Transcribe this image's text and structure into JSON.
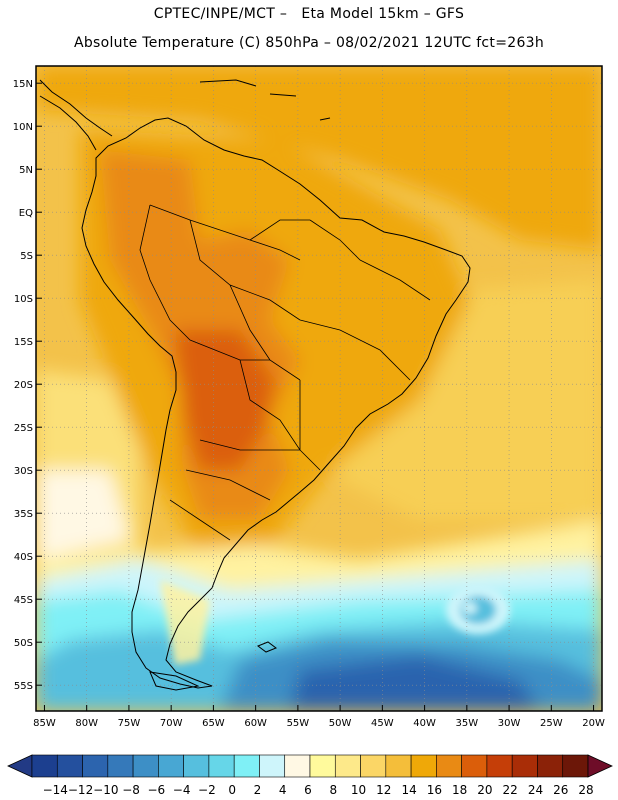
{
  "header": {
    "line1": "CPTEC/INPE/MCT –   Eta Model 15km – GFS",
    "line2": "Absolute Temperature (C) 850hPa – 08/02/2021 12UTC fct=263h"
  },
  "map": {
    "lon_min": -86,
    "lon_max": -19,
    "lat_min": -58,
    "lat_max": 17,
    "lat_ticks": [
      {
        "value": 15,
        "label": "15N"
      },
      {
        "value": 10,
        "label": "10N"
      },
      {
        "value": 5,
        "label": "5N"
      },
      {
        "value": 0,
        "label": "EQ"
      },
      {
        "value": -5,
        "label": "5S"
      },
      {
        "value": -10,
        "label": "10S"
      },
      {
        "value": -15,
        "label": "15S"
      },
      {
        "value": -20,
        "label": "20S"
      },
      {
        "value": -25,
        "label": "25S"
      },
      {
        "value": -30,
        "label": "30S"
      },
      {
        "value": -35,
        "label": "35S"
      },
      {
        "value": -40,
        "label": "40S"
      },
      {
        "value": -45,
        "label": "45S"
      },
      {
        "value": -50,
        "label": "50S"
      },
      {
        "value": -55,
        "label": "55S"
      }
    ],
    "lon_ticks": [
      {
        "value": -85,
        "label": "85W"
      },
      {
        "value": -80,
        "label": "80W"
      },
      {
        "value": -75,
        "label": "75W"
      },
      {
        "value": -70,
        "label": "70W"
      },
      {
        "value": -65,
        "label": "65W"
      },
      {
        "value": -60,
        "label": "60W"
      },
      {
        "value": -55,
        "label": "55W"
      },
      {
        "value": -50,
        "label": "50W"
      },
      {
        "value": -45,
        "label": "45W"
      },
      {
        "value": -40,
        "label": "40W"
      },
      {
        "value": -35,
        "label": "35W"
      },
      {
        "value": -30,
        "label": "30W"
      },
      {
        "value": -25,
        "label": "25W"
      },
      {
        "value": -20,
        "label": "20W"
      }
    ]
  },
  "colorbar": {
    "labels": [
      "-14",
      "-12",
      "-10",
      "-8",
      "-6",
      "-4",
      "-2",
      "0",
      "2",
      "4",
      "6",
      "8",
      "10",
      "12",
      "14",
      "16",
      "18",
      "20",
      "22",
      "24",
      "26",
      "28"
    ],
    "colors": [
      "#1c3f8f",
      "#24509e",
      "#2c64ae",
      "#3579ba",
      "#3d8fc6",
      "#48a7d3",
      "#56bfde",
      "#66d6e8",
      "#7ff0f6",
      "#cef5fb",
      "#fff8e4",
      "#fffa9c",
      "#fde98a",
      "#fbd666",
      "#f4be3a",
      "#efa808",
      "#e98a14",
      "#db5e0a",
      "#c53e08",
      "#a92d07",
      "#8b2208",
      "#6c1708"
    ],
    "low_end_color": "#223a85",
    "high_end_color": "#6e0d28"
  }
}
